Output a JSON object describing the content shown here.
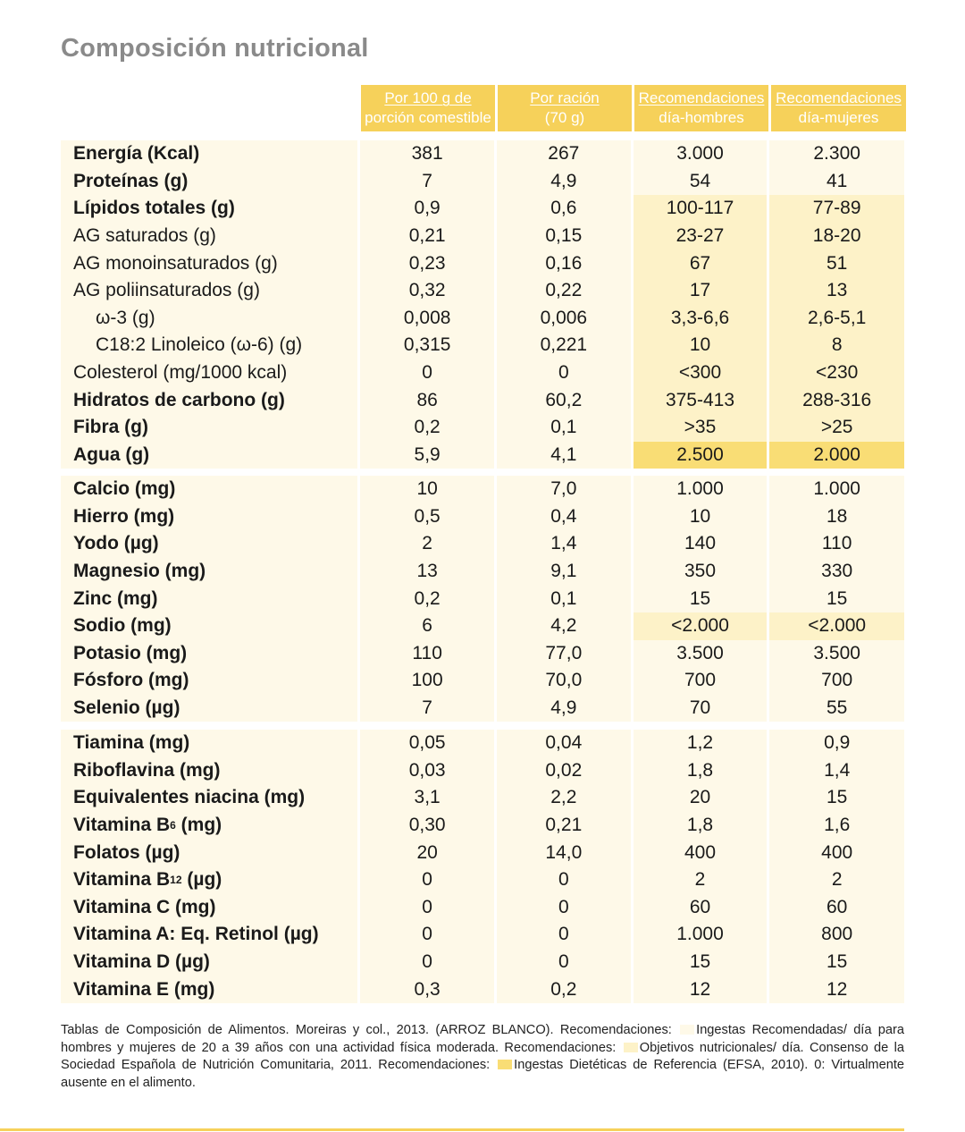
{
  "title": "Composición nutricional",
  "headers": [
    {
      "line1": "Por 100 g de",
      "line2": "porción comestible"
    },
    {
      "line1": "Por ración",
      "line2": "(70 g)"
    },
    {
      "line1": "Recomendaciones",
      "line2": "día-hombres"
    },
    {
      "line1": "Recomendaciones",
      "line2": "día-mujeres"
    }
  ],
  "sections": [
    {
      "rows": [
        {
          "label": "Energía (Kcal)",
          "bold": true,
          "indent": false,
          "values": [
            "381",
            "267",
            "3.000",
            "2.300"
          ],
          "rec_level": "light"
        },
        {
          "label": "Proteínas (g)",
          "bold": true,
          "indent": false,
          "values": [
            "7",
            "4,9",
            "54",
            "41"
          ],
          "rec_level": "light"
        },
        {
          "label": "Lípidos totales (g)",
          "bold": true,
          "indent": false,
          "values": [
            "0,9",
            "0,6",
            "100-117",
            "77-89"
          ],
          "rec_level": "mid"
        },
        {
          "label": "AG saturados (g)",
          "bold": false,
          "indent": false,
          "values": [
            "0,21",
            "0,15",
            "23-27",
            "18-20"
          ],
          "rec_level": "mid"
        },
        {
          "label": "AG monoinsaturados (g)",
          "bold": false,
          "indent": false,
          "values": [
            "0,23",
            "0,16",
            "67",
            "51"
          ],
          "rec_level": "mid"
        },
        {
          "label": "AG poliinsaturados (g)",
          "bold": false,
          "indent": false,
          "values": [
            "0,32",
            "0,22",
            "17",
            "13"
          ],
          "rec_level": "mid"
        },
        {
          "label": "ω-3 (g)",
          "bold": false,
          "indent": true,
          "values": [
            "0,008",
            "0,006",
            "3,3-6,6",
            "2,6-5,1"
          ],
          "rec_level": "mid"
        },
        {
          "label": "C18:2 Linoleico (ω-6) (g)",
          "bold": false,
          "indent": true,
          "values": [
            "0,315",
            "0,221",
            "10",
            "8"
          ],
          "rec_level": "mid"
        },
        {
          "label": "Colesterol (mg/1000 kcal)",
          "bold": false,
          "indent": false,
          "values": [
            "0",
            "0",
            "<300",
            "<230"
          ],
          "rec_level": "mid"
        },
        {
          "label": "Hidratos de carbono (g)",
          "bold": true,
          "indent": false,
          "values": [
            "86",
            "60,2",
            "375-413",
            "288-316"
          ],
          "rec_level": "mid"
        },
        {
          "label": "Fibra (g)",
          "bold": true,
          "indent": false,
          "values": [
            "0,2",
            "0,1",
            ">35",
            ">25"
          ],
          "rec_level": "mid"
        },
        {
          "label": "Agua (g)",
          "bold": true,
          "indent": false,
          "values": [
            "5,9",
            "4,1",
            "2.500",
            "2.000"
          ],
          "rec_level": "strong"
        }
      ]
    },
    {
      "rows": [
        {
          "label": "Calcio (mg)",
          "bold": true,
          "indent": false,
          "values": [
            "10",
            "7,0",
            "1.000",
            "1.000"
          ],
          "rec_level": "light"
        },
        {
          "label": "Hierro (mg)",
          "bold": true,
          "indent": false,
          "values": [
            "0,5",
            "0,4",
            "10",
            "18"
          ],
          "rec_level": "light"
        },
        {
          "label": "Yodo (µg)",
          "bold": true,
          "indent": false,
          "values": [
            "2",
            "1,4",
            "140",
            "110"
          ],
          "rec_level": "light"
        },
        {
          "label": "Magnesio (mg)",
          "bold": true,
          "indent": false,
          "values": [
            "13",
            "9,1",
            "350",
            "330"
          ],
          "rec_level": "light"
        },
        {
          "label": "Zinc (mg)",
          "bold": true,
          "indent": false,
          "values": [
            "0,2",
            "0,1",
            "15",
            "15"
          ],
          "rec_level": "light"
        },
        {
          "label": "Sodio (mg)",
          "bold": true,
          "indent": false,
          "values": [
            "6",
            "4,2",
            "<2.000",
            "<2.000"
          ],
          "rec_level": "mid"
        },
        {
          "label": "Potasio (mg)",
          "bold": true,
          "indent": false,
          "values": [
            "110",
            "77,0",
            "3.500",
            "3.500"
          ],
          "rec_level": "light"
        },
        {
          "label": "Fósforo (mg)",
          "bold": true,
          "indent": false,
          "values": [
            "100",
            "70,0",
            "700",
            "700"
          ],
          "rec_level": "light"
        },
        {
          "label": "Selenio (µg)",
          "bold": true,
          "indent": false,
          "values": [
            "7",
            "4,9",
            "70",
            "55"
          ],
          "rec_level": "light"
        }
      ]
    },
    {
      "rows": [
        {
          "label": "Tiamina (mg)",
          "bold": true,
          "indent": false,
          "values": [
            "0,05",
            "0,04",
            "1,2",
            "0,9"
          ],
          "rec_level": "light"
        },
        {
          "label": "Riboflavina (mg)",
          "bold": true,
          "indent": false,
          "values": [
            "0,03",
            "0,02",
            "1,8",
            "1,4"
          ],
          "rec_level": "light"
        },
        {
          "label": "Equivalentes niacina (mg)",
          "bold": true,
          "indent": false,
          "values": [
            "3,1",
            "2,2",
            "20",
            "15"
          ],
          "rec_level": "light"
        },
        {
          "label": "Vitamina B",
          "sub": "6",
          "suffix": " (mg)",
          "bold": true,
          "indent": false,
          "values": [
            "0,30",
            "0,21",
            "1,8",
            "1,6"
          ],
          "rec_level": "light"
        },
        {
          "label": "Folatos (µg)",
          "bold": true,
          "indent": false,
          "values": [
            "20",
            "14,0",
            "400",
            "400"
          ],
          "rec_level": "light"
        },
        {
          "label": "Vitamina B",
          "sub": "12",
          "suffix": " (µg)",
          "bold": true,
          "indent": false,
          "values": [
            "0",
            "0",
            "2",
            "2"
          ],
          "rec_level": "light"
        },
        {
          "label": "Vitamina C (mg)",
          "bold": true,
          "indent": false,
          "values": [
            "0",
            "0",
            "60",
            "60"
          ],
          "rec_level": "light"
        },
        {
          "label": "Vitamina A: Eq. Retinol (µg)",
          "bold": true,
          "indent": false,
          "values": [
            "0",
            "0",
            "1.000",
            "800"
          ],
          "rec_level": "light"
        },
        {
          "label": "Vitamina D (µg)",
          "bold": true,
          "indent": false,
          "values": [
            "0",
            "0",
            "15",
            "15"
          ],
          "rec_level": "light"
        },
        {
          "label": "Vitamina E (mg)",
          "bold": true,
          "indent": false,
          "values": [
            "0,3",
            "0,2",
            "12",
            "12"
          ],
          "rec_level": "light"
        }
      ]
    }
  ],
  "footnote": {
    "part1": "Tablas de Composición de Alimentos. Moreiras y col., 2013. (ARROZ BLANCO). Recomendaciones:",
    "legend1": "Ingestas Recomendadas/ día para hombres y mujeres de 20 a 39 años con una actividad física moderada. Recomendaciones:",
    "legend2": "Objetivos nutricionales/ día. Consenso de la Sociedad Española de Nutrición Comunitaria, 2011. Recomendaciones:",
    "legend3": "Ingestas Dietéticas de Referencia (EFSA, 2010). 0: Virtualmente ausente en el alimento."
  },
  "colors": {
    "header": "#f6d15a",
    "light": "#fef9e8",
    "mid": "#fdf2c8",
    "strong": "#f9dd75",
    "title": "#8a8a8a"
  }
}
